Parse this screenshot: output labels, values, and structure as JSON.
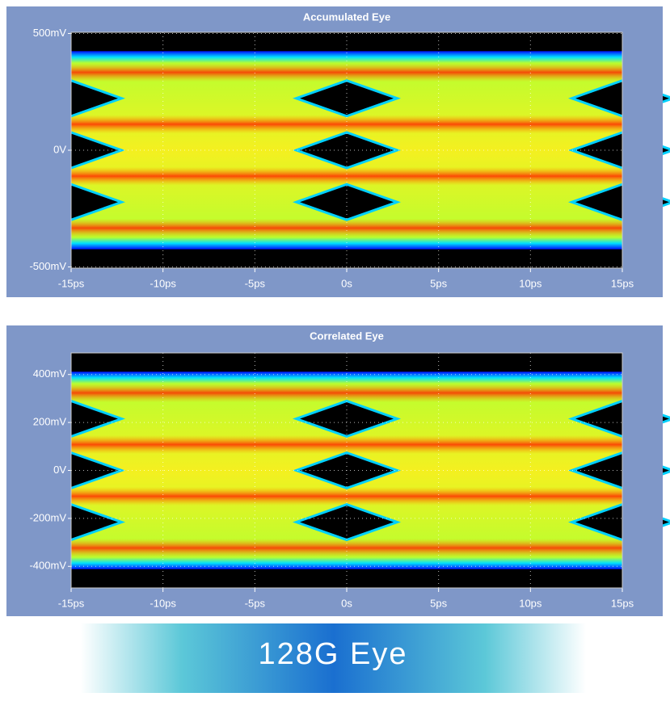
{
  "chart_data": [
    {
      "type": "eye",
      "title": "Accumulated Eye",
      "xlim": [
        -15,
        15
      ],
      "xticks": [
        {
          "value": -15,
          "label": "-15ps"
        },
        {
          "value": -10,
          "label": "-10ps"
        },
        {
          "value": -5,
          "label": "-5ps"
        },
        {
          "value": 0,
          "label": "0s"
        },
        {
          "value": 5,
          "label": "5ps"
        },
        {
          "value": 10,
          "label": "10ps"
        },
        {
          "value": 15,
          "label": "15ps"
        }
      ],
      "ylim": [
        -505,
        505
      ],
      "yticks": [
        {
          "value": 500,
          "label": "500mV"
        },
        {
          "value": 0,
          "label": "0V"
        },
        {
          "value": -500,
          "label": "-500mV"
        }
      ],
      "grid": true
    },
    {
      "type": "eye",
      "title": "Correlated Eye",
      "xlim": [
        -15,
        15
      ],
      "xticks": [
        {
          "value": -15,
          "label": "-15ps"
        },
        {
          "value": -10,
          "label": "-10ps"
        },
        {
          "value": -5,
          "label": "-5ps"
        },
        {
          "value": 0,
          "label": "0s"
        },
        {
          "value": 5,
          "label": "5ps"
        },
        {
          "value": 10,
          "label": "10ps"
        },
        {
          "value": 15,
          "label": "15ps"
        }
      ],
      "ylim": [
        -490,
        490
      ],
      "yticks": [
        {
          "value": 400,
          "label": "400mV"
        },
        {
          "value": 200,
          "label": "200mV"
        },
        {
          "value": 0,
          "label": "0V"
        },
        {
          "value": -200,
          "label": "-200mV"
        },
        {
          "value": -400,
          "label": "-400mV"
        }
      ],
      "grid": true
    }
  ],
  "banner": {
    "title": "128G Eye"
  }
}
